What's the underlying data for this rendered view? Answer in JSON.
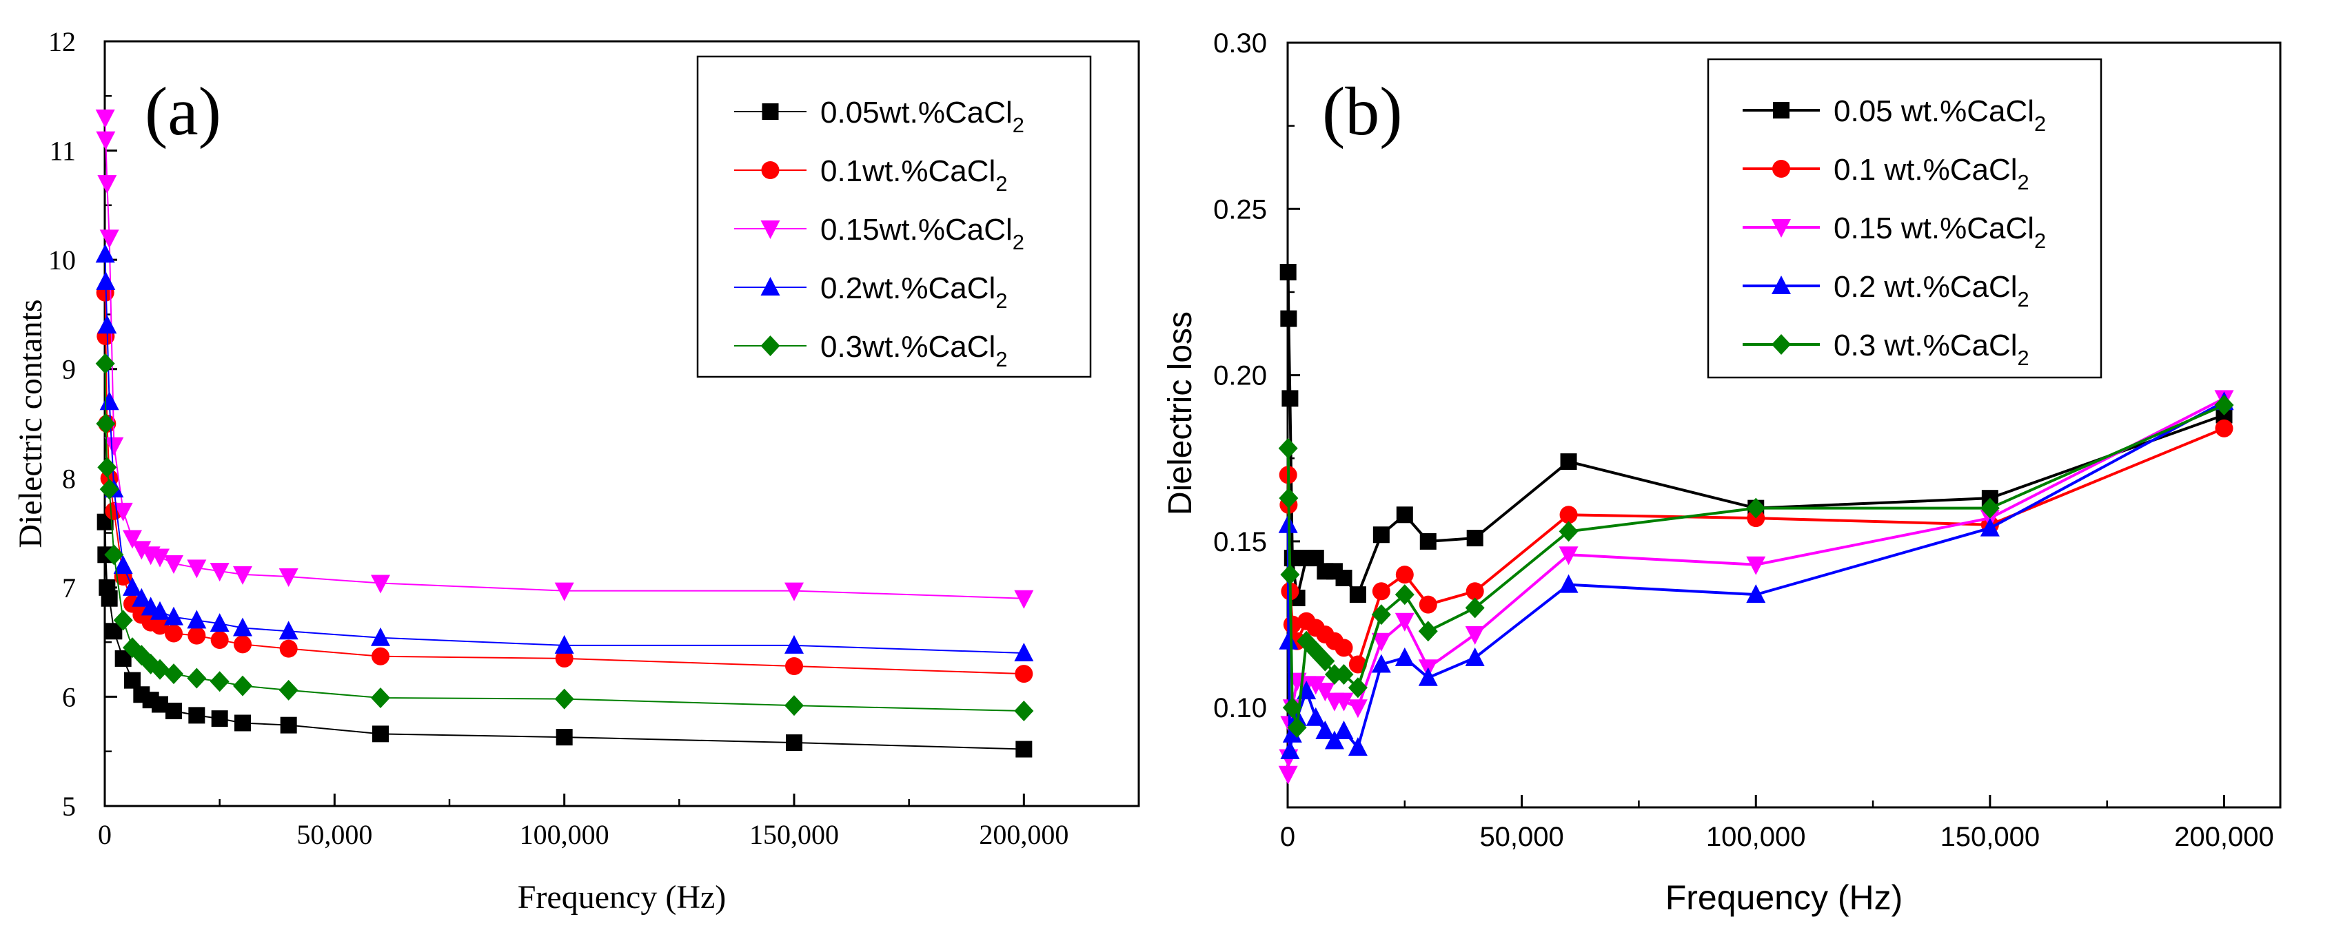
{
  "chart_data": [
    {
      "type": "line",
      "panel_label": "(a)",
      "title": "",
      "xlabel": "Frequency (Hz)",
      "ylabel": "Dielectric contants",
      "xlim": [
        0,
        225000
      ],
      "ylim": [
        5,
        12
      ],
      "xticks": [
        0,
        50000,
        100000,
        150000,
        200000
      ],
      "xtick_labels": [
        "0",
        "50,000",
        "100,000",
        "150,000",
        "200,000"
      ],
      "yticks": [
        5,
        6,
        7,
        8,
        9,
        10,
        11,
        12
      ],
      "ytick_labels": [
        "5",
        "6",
        "7",
        "8",
        "9",
        "10",
        "11",
        "12"
      ],
      "grid": false,
      "legend_position": "top-right",
      "series": [
        {
          "name": "0.05wt.%CaCl",
          "subscript": "2",
          "color": "#000000",
          "marker": "square",
          "x": [
            100,
            200,
            500,
            1000,
            2000,
            4000,
            6000,
            8000,
            10000,
            12000,
            15000,
            20000,
            25000,
            30000,
            40000,
            60000,
            100000,
            150000,
            200000
          ],
          "y": [
            7.6,
            7.3,
            7.0,
            6.9,
            6.6,
            6.35,
            6.15,
            6.02,
            5.97,
            5.93,
            5.87,
            5.83,
            5.8,
            5.76,
            5.74,
            5.66,
            5.63,
            5.58,
            5.52
          ]
        },
        {
          "name": "0.1wt.%CaCl",
          "subscript": "2",
          "color": "#ff0000",
          "marker": "circle",
          "x": [
            100,
            200,
            500,
            1000,
            2000,
            4000,
            6000,
            8000,
            10000,
            12000,
            15000,
            20000,
            25000,
            30000,
            40000,
            60000,
            100000,
            150000,
            200000
          ],
          "y": [
            9.7,
            9.3,
            8.5,
            8.0,
            7.7,
            7.1,
            6.85,
            6.75,
            6.68,
            6.65,
            6.58,
            6.56,
            6.52,
            6.48,
            6.44,
            6.37,
            6.35,
            6.28,
            6.21
          ]
        },
        {
          "name": "0.15wt.%CaCl",
          "subscript": "2",
          "color": "#ff00ff",
          "marker": "triangle-down",
          "x": [
            100,
            200,
            500,
            1000,
            2000,
            4000,
            6000,
            8000,
            10000,
            12000,
            15000,
            20000,
            25000,
            30000,
            40000,
            60000,
            100000,
            150000,
            200000
          ],
          "y": [
            11.3,
            11.1,
            10.7,
            10.2,
            8.3,
            7.7,
            7.45,
            7.35,
            7.3,
            7.28,
            7.22,
            7.18,
            7.15,
            7.12,
            7.1,
            7.04,
            6.97,
            6.97,
            6.9
          ]
        },
        {
          "name": "0.2wt.%CaCl",
          "subscript": "2",
          "color": "#0000ff",
          "marker": "triangle-up",
          "x": [
            100,
            200,
            500,
            1000,
            2000,
            4000,
            6000,
            8000,
            10000,
            12000,
            15000,
            20000,
            25000,
            30000,
            40000,
            60000,
            100000,
            150000,
            200000
          ],
          "y": [
            10.05,
            9.8,
            9.4,
            8.7,
            7.9,
            7.2,
            7.0,
            6.9,
            6.82,
            6.78,
            6.73,
            6.7,
            6.67,
            6.63,
            6.6,
            6.54,
            6.47,
            6.47,
            6.4
          ]
        },
        {
          "name": "0.3wt.%CaCl",
          "subscript": "2",
          "color": "#008000",
          "marker": "diamond",
          "x": [
            100,
            200,
            500,
            1000,
            2000,
            4000,
            6000,
            8000,
            10000,
            12000,
            15000,
            20000,
            25000,
            30000,
            40000,
            60000,
            100000,
            150000,
            200000
          ],
          "y": [
            9.05,
            8.5,
            8.1,
            7.9,
            7.3,
            6.7,
            6.45,
            6.38,
            6.3,
            6.25,
            6.21,
            6.17,
            6.14,
            6.1,
            6.06,
            5.99,
            5.98,
            5.92,
            5.87
          ]
        }
      ]
    },
    {
      "type": "line",
      "panel_label": "(b)",
      "title": "",
      "xlabel": "Frequency (Hz)",
      "ylabel": "Dielectric loss",
      "xlim": [
        0,
        212000
      ],
      "ylim": [
        0.07,
        0.3
      ],
      "xticks": [
        0,
        50000,
        100000,
        150000,
        200000
      ],
      "xtick_labels": [
        "0",
        "50,000",
        "100,000",
        "150,000",
        "200,000"
      ],
      "yticks": [
        0.1,
        0.15,
        0.2,
        0.25,
        0.3
      ],
      "ytick_labels": [
        "0.10",
        "0.15",
        "0.20",
        "0.25",
        "0.30"
      ],
      "grid": false,
      "legend_position": "top-right",
      "series": [
        {
          "name": "0.05 wt.%CaCl",
          "subscript": "2",
          "color": "#000000",
          "marker": "square",
          "x": [
            100,
            200,
            500,
            1000,
            2000,
            4000,
            6000,
            8000,
            10000,
            12000,
            15000,
            20000,
            25000,
            30000,
            40000,
            60000,
            100000,
            150000,
            200000
          ],
          "y": [
            0.231,
            0.217,
            0.193,
            0.145,
            0.133,
            0.145,
            0.145,
            0.141,
            0.141,
            0.139,
            0.134,
            0.152,
            0.158,
            0.15,
            0.151,
            0.174,
            0.16,
            0.163,
            0.188
          ]
        },
        {
          "name": "0.1 wt.%CaCl",
          "subscript": "2",
          "color": "#ff0000",
          "marker": "circle",
          "x": [
            100,
            200,
            500,
            1000,
            2000,
            4000,
            6000,
            8000,
            10000,
            12000,
            15000,
            20000,
            25000,
            30000,
            40000,
            60000,
            100000,
            150000,
            200000
          ],
          "y": [
            0.17,
            0.161,
            0.135,
            0.125,
            0.12,
            0.126,
            0.124,
            0.122,
            0.12,
            0.118,
            0.113,
            0.135,
            0.14,
            0.131,
            0.135,
            0.158,
            0.157,
            0.155,
            0.184
          ]
        },
        {
          "name": "0.15 wt.%CaCl",
          "subscript": "2",
          "color": "#ff00ff",
          "marker": "triangle-down",
          "x": [
            100,
            200,
            500,
            1000,
            2000,
            4000,
            6000,
            8000,
            10000,
            12000,
            15000,
            20000,
            25000,
            30000,
            40000,
            60000,
            100000,
            150000,
            200000
          ],
          "y": [
            0.08,
            0.085,
            0.095,
            0.1,
            0.108,
            0.107,
            0.107,
            0.105,
            0.102,
            0.102,
            0.1,
            0.12,
            0.126,
            0.112,
            0.122,
            0.146,
            0.143,
            0.157,
            0.193
          ]
        },
        {
          "name": "0.2 wt.%CaCl",
          "subscript": "2",
          "color": "#0000ff",
          "marker": "triangle-up",
          "x": [
            100,
            200,
            500,
            1000,
            2000,
            4000,
            6000,
            8000,
            10000,
            12000,
            15000,
            20000,
            25000,
            30000,
            40000,
            60000,
            100000,
            150000,
            200000
          ],
          "y": [
            0.155,
            0.12,
            0.087,
            0.092,
            0.097,
            0.105,
            0.097,
            0.093,
            0.09,
            0.093,
            0.088,
            0.113,
            0.115,
            0.109,
            0.115,
            0.137,
            0.134,
            0.154,
            0.192
          ]
        },
        {
          "name": "0.3 wt.%CaCl",
          "subscript": "2",
          "color": "#008000",
          "marker": "diamond",
          "x": [
            100,
            200,
            500,
            1000,
            2000,
            4000,
            6000,
            8000,
            10000,
            12000,
            15000,
            20000,
            25000,
            30000,
            40000,
            60000,
            100000,
            150000,
            200000
          ],
          "y": [
            0.178,
            0.163,
            0.14,
            0.1,
            0.094,
            0.12,
            0.117,
            0.114,
            0.11,
            0.11,
            0.106,
            0.128,
            0.134,
            0.123,
            0.13,
            0.153,
            0.16,
            0.16,
            0.191
          ]
        }
      ]
    }
  ]
}
